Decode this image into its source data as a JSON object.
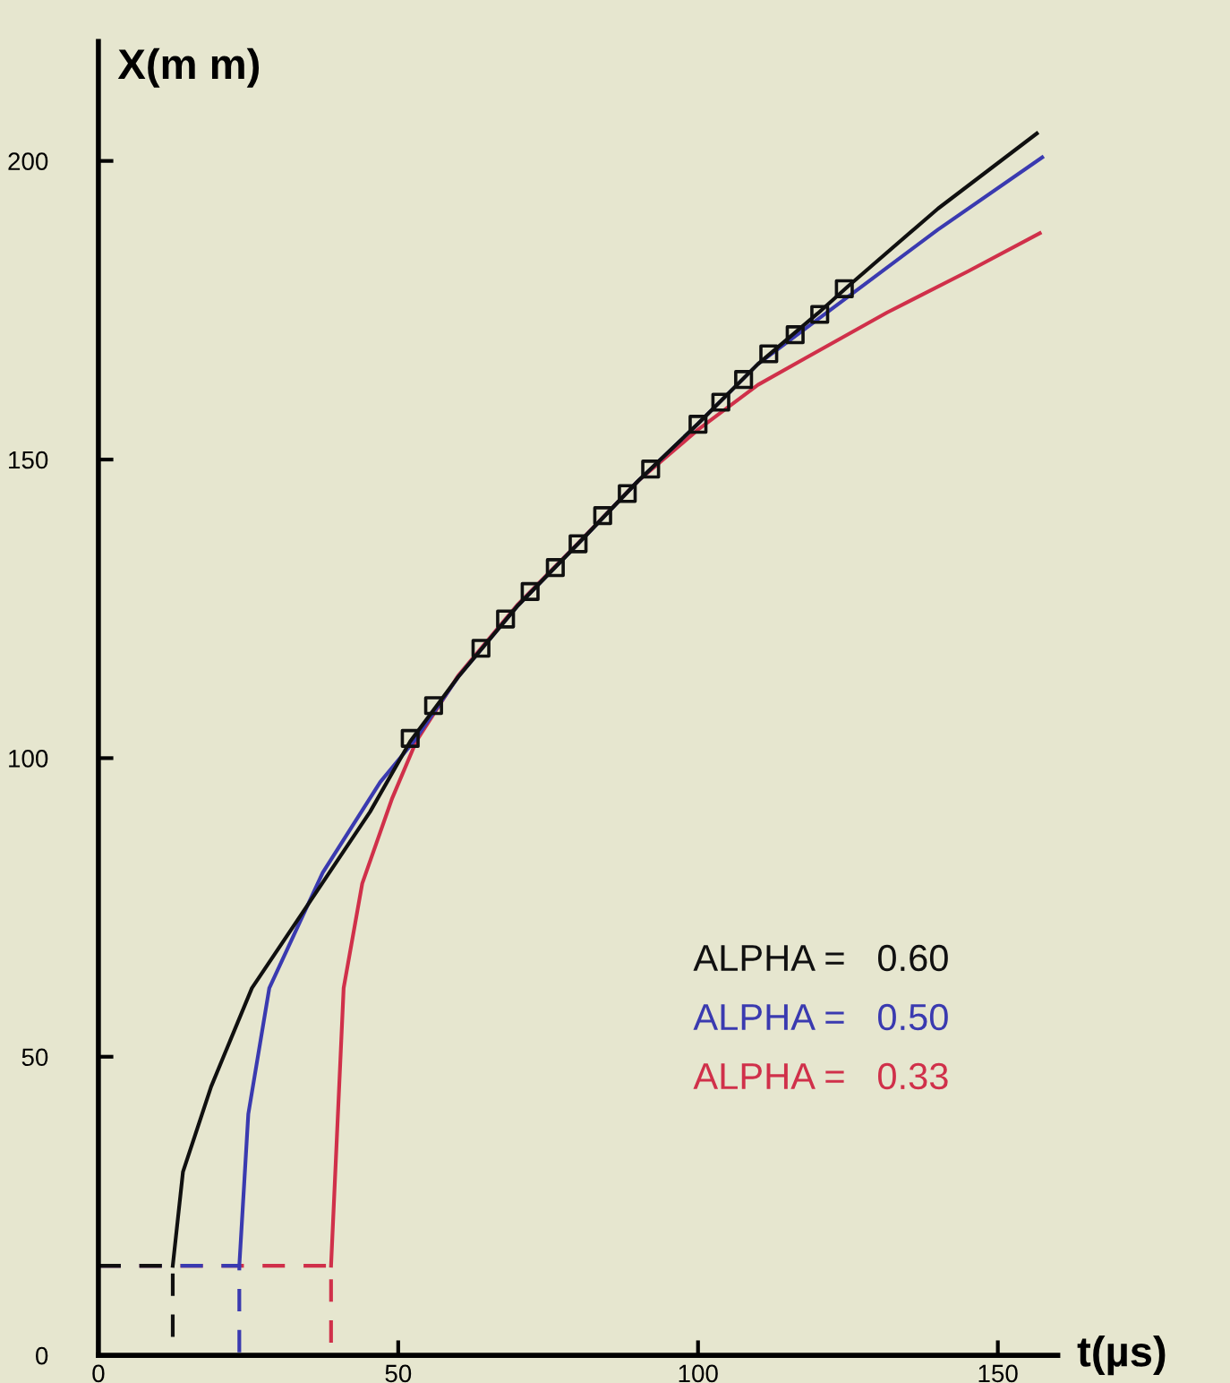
{
  "chart_data": {
    "type": "line",
    "xlabel": "t(µs)",
    "ylabel": "X(m m)",
    "xlim": [
      0,
      160
    ],
    "ylim": [
      0,
      220
    ],
    "xticks": [
      0,
      50,
      100,
      150
    ],
    "yticks": [
      0,
      50,
      100,
      150,
      200
    ],
    "grid": false,
    "legend": "bottom right",
    "line_style": "solid",
    "marker": "none",
    "series": [
      {
        "line_style": "dashed",
        "color": "#d0304a",
        "x": [
          0,
          38.8,
          38.8
        ],
        "values": [
          15,
          15,
          0
        ]
      },
      {
        "line_style": "dashed",
        "color": "#3a3ab0",
        "x": [
          0,
          23.5,
          23.5
        ],
        "values": [
          15,
          15,
          0
        ]
      },
      {
        "line_style": "dashed",
        "color": "#101010",
        "x": [
          0,
          12.4,
          12.4
        ],
        "values": [
          15,
          15,
          0
        ]
      },
      {
        "name": "ALPHA =   0.33",
        "color": "#d0304a",
        "x": [
          38.8,
          40.9,
          44,
          49,
          53,
          60,
          70,
          80,
          90,
          100,
          110,
          117.6,
          131.5,
          145,
          157
        ],
        "values": [
          15,
          61.5,
          79,
          93.3,
          102.8,
          113.8,
          125.8,
          136,
          146.4,
          155,
          162.5,
          166.8,
          174.6,
          181.5,
          187.9
        ]
      },
      {
        "name": "ALPHA =   0.50",
        "color": "#3a3ab0",
        "x": [
          23.5,
          25,
          28.5,
          37.4,
          47,
          52.6,
          60,
          70,
          80,
          90,
          100,
          110,
          120,
          130,
          140,
          157.4
        ],
        "values": [
          15,
          40.4,
          61.5,
          80.8,
          96,
          102.8,
          113.6,
          125.6,
          135.9,
          146.4,
          156,
          166,
          173.5,
          181,
          188.5,
          200.6
        ]
      },
      {
        "name": "ALPHA =   0.60",
        "color": "#101010",
        "x": [
          12.4,
          14.1,
          18.8,
          25.6,
          35.3,
          45.3,
          52,
          60,
          70,
          80,
          90,
          100,
          110,
          120,
          125,
          140,
          156.5
        ],
        "values": [
          15,
          30.7,
          45,
          61.5,
          76,
          91,
          102.8,
          113.6,
          125.6,
          135.9,
          146.4,
          156,
          166,
          174.5,
          179,
          192,
          204.6
        ]
      },
      {
        "type": "scatter",
        "marker": "square",
        "color": "#101010",
        "x": [
          52,
          55.9,
          63.8,
          67.9,
          72,
          76.2,
          80,
          84.1,
          88.2,
          92.1,
          100,
          103.8,
          107.6,
          111.8,
          116.2,
          120.3,
          124.4
        ],
        "values": [
          103.3,
          108.8,
          118.4,
          123.3,
          127.9,
          131.9,
          135.9,
          140.6,
          144.3,
          148.4,
          155.9,
          159.6,
          163.4,
          167.7,
          170.9,
          174.3,
          178.6
        ]
      }
    ]
  }
}
